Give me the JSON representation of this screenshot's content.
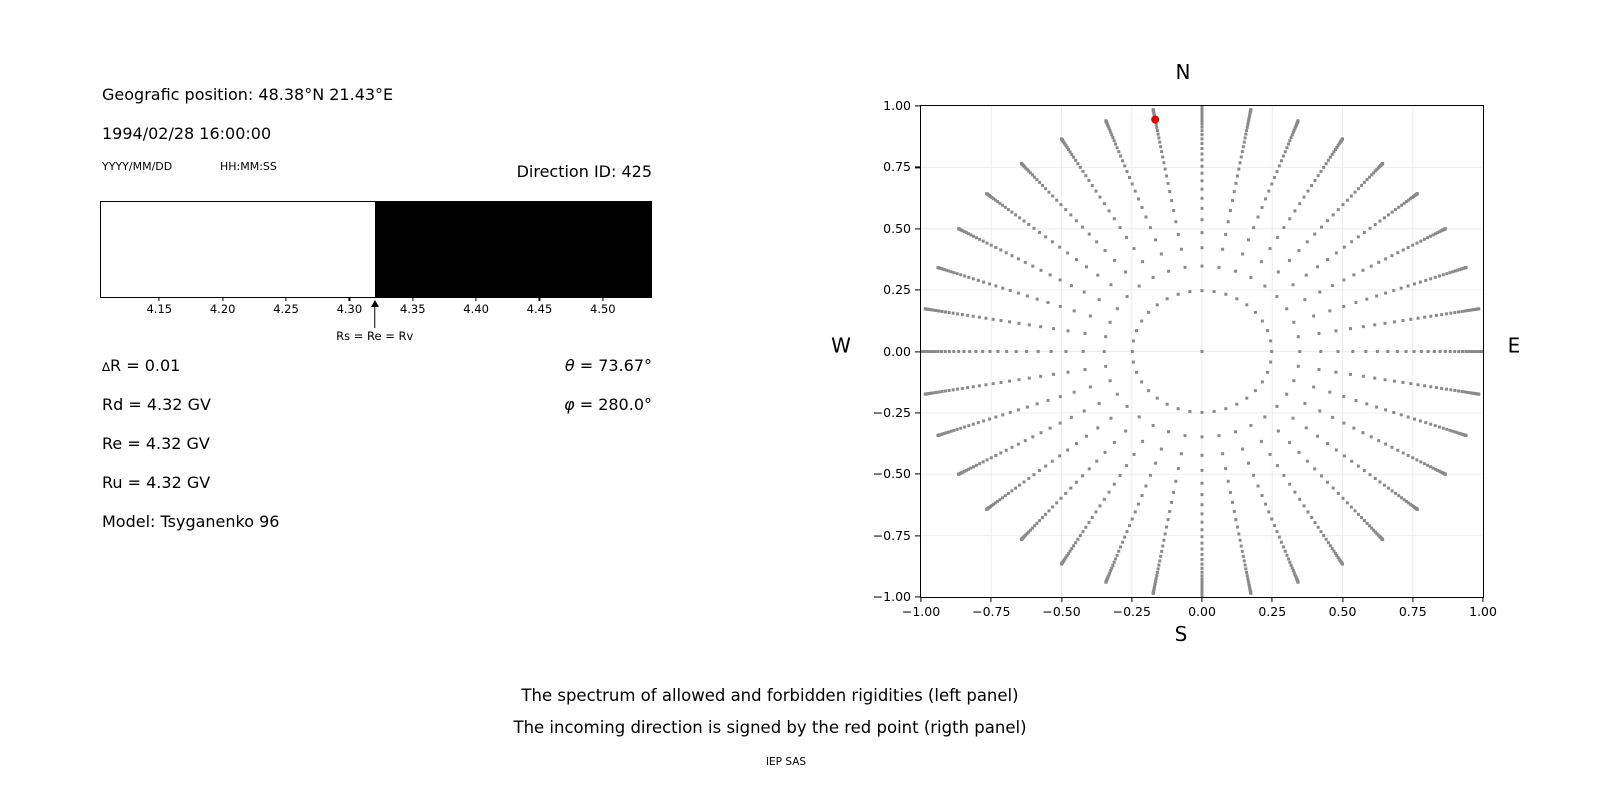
{
  "left_panel": {
    "position_text": "Geografic position: 48.38°N 21.43°E",
    "datetime_text": "1994/02/28 16:00:00",
    "date_format_hint": "YYYY/MM/DD",
    "time_format_hint": "HH:MM:SS",
    "direction_id_text": "Direction ID: 425",
    "annotation_text": "Rs = Re = Rv",
    "values": {
      "delta_symbol": "∆",
      "delta_rest": "R = 0.01",
      "rd": "Rd = 4.32 GV",
      "re": "Re = 4.32 GV",
      "ru": "Ru = 4.32 GV",
      "model": "Model: Tsyganenko 96",
      "theta_symbol": "θ",
      "theta_rest": " = 73.67°",
      "phi_symbol": "φ",
      "phi_rest": " = 280.0°"
    }
  },
  "right_panel": {
    "compass": {
      "north": "N",
      "south": "S",
      "west": "W",
      "east": "E"
    }
  },
  "footer": {
    "line1": "The spectrum of allowed and forbidden rigidities (left panel)",
    "line2": "The incoming direction is signed by the red point (rigth panel)",
    "credit": "IEP SAS"
  },
  "chart_data": [
    {
      "type": "area",
      "panel": "left",
      "description": "Rigidity spectrum bar: white below boundary, black above boundary",
      "xlim": [
        4.104,
        4.538
      ],
      "xtick_values": [
        4.15,
        4.2,
        4.25,
        4.3,
        4.35,
        4.4,
        4.45,
        4.5
      ],
      "xtick_labels": [
        "4.15",
        "4.20",
        "4.25",
        "4.30",
        "4.35",
        "4.40",
        "4.45",
        "4.50"
      ],
      "boundary_rigidity_GV": 4.32,
      "regions": [
        {
          "from": 4.104,
          "to": 4.32,
          "color": "#ffffff"
        },
        {
          "from": 4.32,
          "to": 4.538,
          "color": "#000000"
        }
      ],
      "annotation": {
        "text": "Rs = Re = Rv",
        "x": 4.32
      },
      "values": {
        "delta_R": 0.01,
        "Rd_GV": 4.32,
        "Re_GV": 4.32,
        "Ru_GV": 4.32,
        "theta_deg": 73.67,
        "phi_deg": 280.0,
        "model": "Tsyganenko 96"
      }
    },
    {
      "type": "scatter",
      "panel": "right",
      "description": "Grid of incoming directions: 36 azimuth spokes every 10 deg, radius = sin(zenith), zenith rings at cos(theta)=1-k/32; red point marks the incoming direction",
      "xlim": [
        -1,
        1
      ],
      "ylim": [
        -1,
        1
      ],
      "xtick_values": [
        -1,
        -0.75,
        -0.5,
        -0.25,
        0,
        0.25,
        0.5,
        0.75,
        1
      ],
      "xtick_labels": [
        "−1.00",
        "−0.75",
        "−0.50",
        "−0.25",
        "0.00",
        "0.25",
        "0.50",
        "0.75",
        "1.00"
      ],
      "ytick_values": [
        1,
        0.75,
        0.5,
        0.25,
        0,
        -0.25,
        -0.5,
        -0.75,
        -1
      ],
      "ytick_labels": [
        "1.00",
        "0.75",
        "0.50",
        "0.25",
        "0.00",
        "−0.25",
        "−0.50",
        "−0.75",
        "−1.00"
      ],
      "grid": true,
      "grid_values": [
        -0.75,
        -0.5,
        -0.25,
        0,
        0.25,
        0.5,
        0.75
      ],
      "grid_color": "#ededed",
      "dot_color": "#8a8a8a",
      "dot_size_px": 3,
      "direction_grid": {
        "azimuths_deg": [
          0,
          10,
          20,
          30,
          40,
          50,
          60,
          70,
          80,
          90,
          100,
          110,
          120,
          130,
          140,
          150,
          160,
          170,
          180,
          190,
          200,
          210,
          220,
          230,
          240,
          250,
          260,
          270,
          280,
          290,
          300,
          310,
          320,
          330,
          340,
          350
        ],
        "ring_radii": [
          0.248,
          0.348,
          0.4228,
          0.4841,
          0.5367,
          0.583,
          0.6242,
          0.6614,
          0.6953,
          0.7262,
          0.7545,
          0.7806,
          0.8046,
          0.8268,
          0.8472,
          0.866,
          0.8833,
          0.8992,
          0.9138,
          0.927,
          0.9391,
          0.9499,
          0.9596,
          0.9682,
          0.9758,
          0.9823,
          0.9877,
          0.9922,
          0.9956,
          0.998,
          0.9995,
          1.0
        ],
        "includes_center_point": true
      },
      "red_point": {
        "x": -0.1666,
        "y": 0.945,
        "theta_deg": 73.67,
        "phi_deg": 280.0,
        "color": "#e60000",
        "radius_px": 4
      },
      "compass_labels": {
        "top": "N",
        "bottom": "S",
        "left": "W",
        "right": "E"
      }
    }
  ]
}
